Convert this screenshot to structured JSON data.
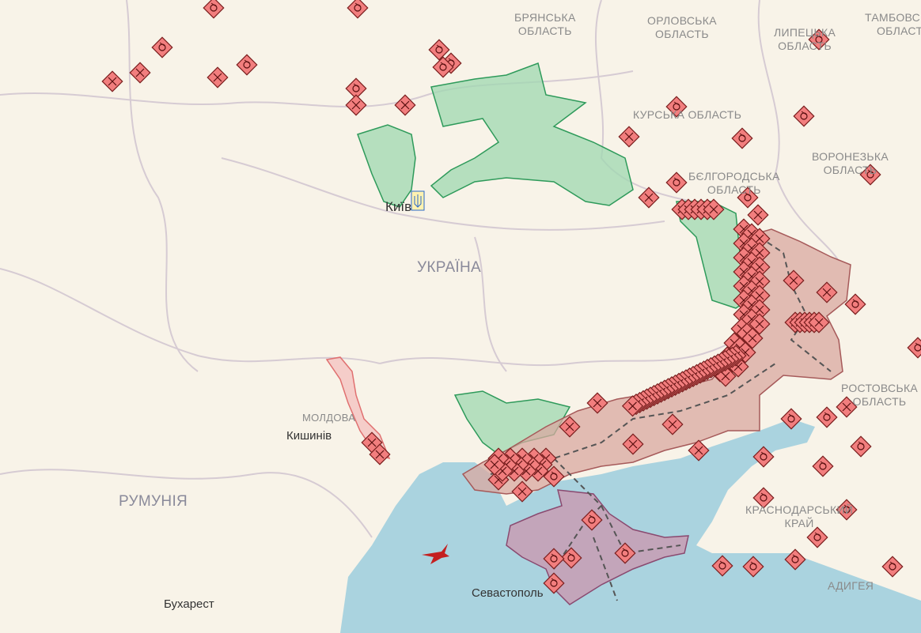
{
  "colors": {
    "land": "#f8f3e8",
    "sea": "#aad3df",
    "border": "#c9bfc9",
    "occupied": "#d9a8a0",
    "crimea": "#c99ab0",
    "liberated": "#9fd8b0",
    "liberated_edge": "#2e9a5a",
    "marker": "#f27e7e",
    "marker_edge": "#7a1f1f",
    "transnistria": "#f4b4b4"
  },
  "labels": {
    "bryansk": [
      "БРЯНСЬКА",
      "ОБЛАСТЬ"
    ],
    "orel": [
      "ОРЛОВСЬКА",
      "ОБЛАСТЬ"
    ],
    "lipetsk": [
      "ЛИПЕЦЬКА",
      "ОБЛАСТЬ"
    ],
    "tambov": [
      "ТАМБОВСЬКА",
      "ОБЛАСТЬ"
    ],
    "kursk": [
      "КУРСЬКА ОБЛАСТЬ"
    ],
    "belgorod": [
      "БЄЛГОРОДСЬКА",
      "ОБЛАСТЬ"
    ],
    "voronezh": [
      "ВОРОНЕЗЬКА",
      "ОБЛАСТЬ"
    ],
    "rostov": [
      "РОСТОВСЬКА",
      "ОБЛАСТЬ"
    ],
    "krasnodar": [
      "КРАСНОДАРСЬКИЙ",
      "КРАЙ"
    ],
    "adygea": [
      "АДИГЕЯ"
    ],
    "ukraine": "УКРАЇНА",
    "moldova": "МОЛДОВА",
    "romania": "РУМУНІЯ"
  },
  "cities": {
    "kyiv": "Київ",
    "chisinau": "Кишинів",
    "sevastopol": "Севастополь",
    "bucharest": "Бухарест"
  },
  "marker_types": [
    "strike-icon",
    "battle-icon",
    "explosion-icon"
  ]
}
